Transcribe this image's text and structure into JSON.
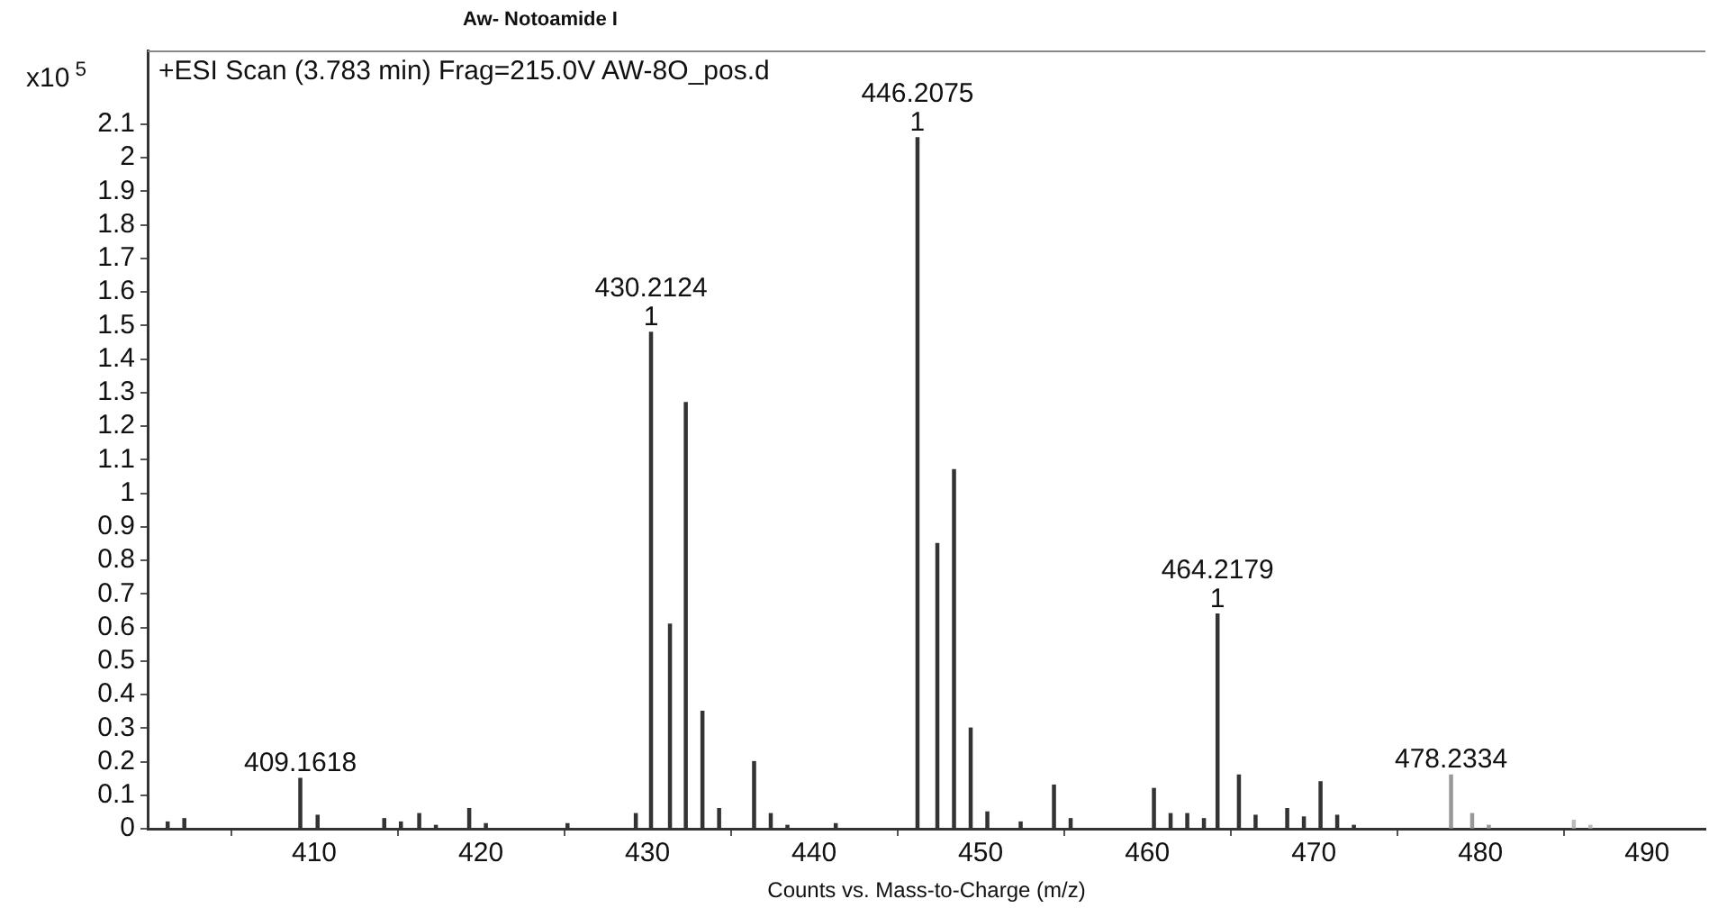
{
  "chart_data": {
    "type": "bar",
    "title": "Aw- Notoamide I",
    "subtitle": "+ESI Scan (3.783 min) Frag=215.0V AW-8O_pos.d",
    "xlabel": "Counts vs. Mass-to-Charge (m/z)",
    "ylabel": "x10$^{5}$",
    "x": [
      401.2,
      402.2,
      409.1618,
      410.2,
      414.2,
      415.2,
      416.3,
      417.3,
      419.3,
      420.3,
      425.2,
      429.3,
      430.2124,
      431.35,
      432.3,
      433.3,
      434.3,
      436.4,
      437.4,
      438.4,
      441.3,
      446.2075,
      447.4,
      448.4,
      449.4,
      450.4,
      452.4,
      454.4,
      455.4,
      460.4,
      461.4,
      462.4,
      463.4,
      464.2179,
      465.5,
      466.5,
      468.4,
      469.4,
      470.4,
      471.4,
      472.4,
      478.2334,
      479.5,
      480.5,
      485.6,
      486.6
    ],
    "values": [
      0.02,
      0.03,
      0.15,
      0.04,
      0.03,
      0.02,
      0.045,
      0.01,
      0.06,
      0.015,
      0.015,
      0.045,
      1.48,
      0.61,
      1.27,
      0.35,
      0.06,
      0.2,
      0.045,
      0.01,
      0.015,
      2.06,
      0.85,
      1.07,
      0.3,
      0.05,
      0.02,
      0.13,
      0.03,
      0.12,
      0.045,
      0.045,
      0.03,
      0.64,
      0.16,
      0.04,
      0.06,
      0.035,
      0.14,
      0.04,
      0.01,
      0.16,
      0.045,
      0.01,
      0.025,
      0.01
    ],
    "colors": [
      "#333333",
      "#333333",
      "#333333",
      "#333333",
      "#333333",
      "#333333",
      "#333333",
      "#333333",
      "#333333",
      "#333333",
      "#333333",
      "#333333",
      "#333333",
      "#333333",
      "#333333",
      "#333333",
      "#333333",
      "#333333",
      "#333333",
      "#333333",
      "#333333",
      "#333333",
      "#333333",
      "#333333",
      "#333333",
      "#333333",
      "#333333",
      "#333333",
      "#333333",
      "#333333",
      "#333333",
      "#333333",
      "#333333",
      "#333333",
      "#333333",
      "#333333",
      "#333333",
      "#333333",
      "#333333",
      "#333333",
      "#333333",
      "#999999",
      "#999999",
      "#999999",
      "#bbbbbb",
      "#bbbbbb"
    ],
    "xlim": [
      400,
      493.5
    ],
    "xticks": [
      410,
      420,
      430,
      440,
      450,
      460,
      470,
      480,
      490
    ],
    "ylim": [
      0,
      2.32
    ],
    "yticks": [
      0,
      0.1,
      0.2,
      0.3,
      0.4,
      0.5,
      0.6,
      0.7,
      0.8,
      0.9,
      1,
      1.1,
      1.2,
      1.3,
      1.4,
      1.5,
      1.6,
      1.7,
      1.8,
      1.9,
      2,
      2.1
    ],
    "grid": false,
    "annotations": [
      {
        "text": "409.1618",
        "x": 409.1618,
        "y": 0.15
      },
      {
        "text": "430.2124",
        "x": 430.2124,
        "y": 1.48
      },
      {
        "text": "1",
        "x": 430.2124,
        "y": 1.48
      },
      {
        "text": "446.2075",
        "x": 446.2075,
        "y": 2.06
      },
      {
        "text": "1",
        "x": 446.2075,
        "y": 2.06
      },
      {
        "text": "464.2179",
        "x": 464.2179,
        "y": 0.64
      },
      {
        "text": "1",
        "x": 464.2179,
        "y": 0.64
      },
      {
        "text": "478.2334",
        "x": 478.2334,
        "y": 0.16
      }
    ]
  }
}
